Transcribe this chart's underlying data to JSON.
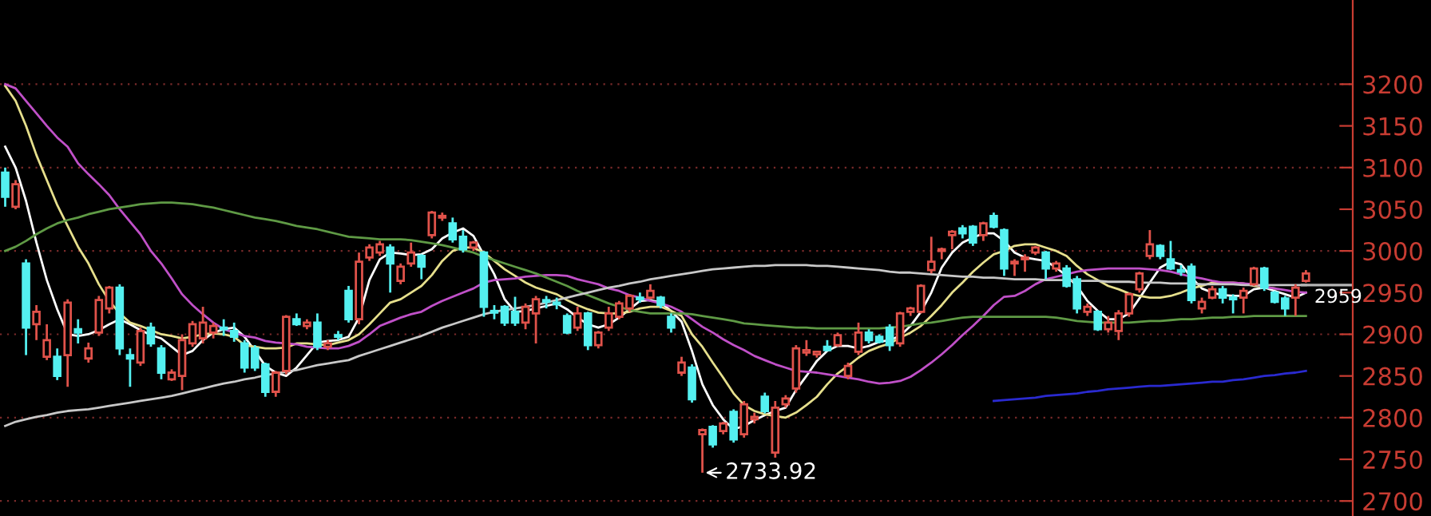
{
  "chart_data": {
    "type": "candlestick",
    "categories": [
      null,
      null,
      null,
      null,
      null,
      null,
      null,
      null,
      null,
      null,
      null,
      null,
      null,
      null,
      null,
      null,
      null,
      null,
      null,
      null,
      null,
      null,
      null,
      null,
      null,
      null,
      null,
      null,
      null,
      null,
      null,
      null,
      null,
      null,
      null,
      null,
      null,
      null,
      null,
      null,
      null,
      null,
      null,
      null,
      null,
      null,
      null,
      null,
      null,
      null,
      null,
      null,
      null,
      null,
      null,
      null,
      null,
      null,
      null,
      null,
      null,
      null,
      null,
      null,
      null,
      null,
      null,
      null,
      null,
      null,
      null,
      null,
      null,
      null,
      null,
      null,
      null,
      null,
      null,
      null,
      null,
      null,
      null,
      null,
      null,
      null,
      null,
      null,
      null,
      null,
      null,
      null,
      null,
      null,
      null,
      null,
      null,
      null,
      null,
      null,
      null,
      null,
      null,
      null,
      null,
      null,
      null,
      null,
      null,
      null,
      null,
      null,
      null,
      null,
      null,
      null,
      null,
      null,
      null,
      null,
      null,
      null,
      null,
      null,
      null,
      null
    ],
    "ohlc": [
      [
        3094,
        3100,
        3053,
        3065
      ],
      [
        3053,
        3085,
        3050,
        3080
      ],
      [
        2985,
        2990,
        2875,
        2908
      ],
      [
        2912,
        2935,
        2893,
        2927
      ],
      [
        2873,
        2912,
        2869,
        2893
      ],
      [
        2873,
        2883,
        2845,
        2850
      ],
      [
        2875,
        2942,
        2837,
        2938
      ],
      [
        2906,
        2918,
        2889,
        2902
      ],
      [
        2871,
        2890,
        2866,
        2883
      ],
      [
        2902,
        2946,
        2898,
        2941
      ],
      [
        2931,
        2958,
        2925,
        2956
      ],
      [
        2956,
        2960,
        2875,
        2883
      ],
      [
        2875,
        2883,
        2837,
        2871
      ],
      [
        2866,
        2908,
        2862,
        2904
      ],
      [
        2908,
        2914,
        2885,
        2889
      ],
      [
        2883,
        2887,
        2846,
        2854
      ],
      [
        2846,
        2858,
        2844,
        2854
      ],
      [
        2850,
        2900,
        2833,
        2893
      ],
      [
        2889,
        2916,
        2885,
        2912
      ],
      [
        2895,
        2933,
        2889,
        2914
      ],
      [
        2902,
        2914,
        2895,
        2910
      ],
      [
        2908,
        2918,
        2898,
        2906
      ],
      [
        2904,
        2914,
        2891,
        2897
      ],
      [
        2889,
        2893,
        2854,
        2860
      ],
      [
        2883,
        2887,
        2856,
        2860
      ],
      [
        2864,
        2866,
        2825,
        2831
      ],
      [
        2831,
        2856,
        2825,
        2854
      ],
      [
        2856,
        2923,
        2852,
        2921
      ],
      [
        2918,
        2925,
        2910,
        2912
      ],
      [
        2910,
        2918,
        2906,
        2914
      ],
      [
        2914,
        2925,
        2881,
        2885
      ],
      [
        2885,
        2893,
        2881,
        2889
      ],
      [
        2899,
        2904,
        2893,
        2897
      ],
      [
        2952,
        2958,
        2914,
        2918
      ],
      [
        2918,
        2998,
        2912,
        2987
      ],
      [
        2992,
        3008,
        2988,
        3004
      ],
      [
        2998,
        3012,
        2994,
        3008
      ],
      [
        3004,
        3008,
        2950,
        2985
      ],
      [
        2964,
        2985,
        2960,
        2981
      ],
      [
        2985,
        3010,
        2981,
        2998
      ],
      [
        2994,
        2996,
        2966,
        2981
      ],
      [
        3019,
        3048,
        3015,
        3046
      ],
      [
        3040,
        3046,
        3036,
        3042
      ],
      [
        3033,
        3040,
        3010,
        3014
      ],
      [
        3017,
        3025,
        2998,
        3002
      ],
      [
        3004,
        3012,
        3000,
        3010
      ],
      [
        2998,
        3000,
        2921,
        2933
      ],
      [
        2928,
        2935,
        2918,
        2926
      ],
      [
        2933,
        2935,
        2910,
        2914
      ],
      [
        2927,
        2945,
        2910,
        2914
      ],
      [
        2914,
        2937,
        2906,
        2933
      ],
      [
        2925,
        2946,
        2889,
        2942
      ],
      [
        2941,
        2946,
        2931,
        2939
      ],
      [
        2938,
        2944,
        2930,
        2936
      ],
      [
        2922,
        2925,
        2900,
        2902
      ],
      [
        2908,
        2933,
        2904,
        2925
      ],
      [
        2925,
        2927,
        2881,
        2887
      ],
      [
        2887,
        2904,
        2883,
        2902
      ],
      [
        2908,
        2933,
        2904,
        2925
      ],
      [
        2921,
        2940,
        2918,
        2937
      ],
      [
        2931,
        2948,
        2927,
        2946
      ],
      [
        2944,
        2950,
        2938,
        2942
      ],
      [
        2944,
        2960,
        2942,
        2952
      ],
      [
        2944,
        2946,
        2931,
        2935
      ],
      [
        2921,
        2925,
        2902,
        2908
      ],
      [
        2854,
        2873,
        2850,
        2866
      ],
      [
        2860,
        2864,
        2818,
        2822
      ],
      [
        2780,
        2787,
        2733.92,
        2785
      ],
      [
        2789,
        2791,
        2764,
        2768
      ],
      [
        2784,
        2795,
        2780,
        2793
      ],
      [
        2807,
        2810,
        2770,
        2774
      ],
      [
        2780,
        2820,
        2776,
        2816
      ],
      [
        2798,
        2806,
        2793,
        2801
      ],
      [
        2825,
        2830,
        2805,
        2808
      ],
      [
        2758,
        2820,
        2752,
        2812
      ],
      [
        2816,
        2827,
        2812,
        2823
      ],
      [
        2835,
        2887,
        2830,
        2883
      ],
      [
        2878,
        2893,
        2874,
        2881
      ],
      [
        2876,
        2880,
        2872,
        2879
      ],
      [
        2885,
        2893,
        2880,
        2881
      ],
      [
        2887,
        2902,
        2885,
        2899
      ],
      [
        2850,
        2866,
        2846,
        2862
      ],
      [
        2879,
        2914,
        2875,
        2902
      ],
      [
        2902,
        2906,
        2889,
        2893
      ],
      [
        2897,
        2900,
        2889,
        2891
      ],
      [
        2908,
        2912,
        2880,
        2887
      ],
      [
        2889,
        2927,
        2885,
        2925
      ],
      [
        2927,
        2933,
        2922,
        2931
      ],
      [
        2927,
        2960,
        2925,
        2958
      ],
      [
        2977,
        3017,
        2973,
        2987
      ],
      [
        3000,
        3004,
        2990,
        3002
      ],
      [
        3019,
        3025,
        3002,
        3023
      ],
      [
        3027,
        3031,
        3015,
        3021
      ],
      [
        3029,
        3031,
        3006,
        3010
      ],
      [
        3019,
        3035,
        3012,
        3033
      ],
      [
        3042,
        3046,
        3027,
        3029
      ],
      [
        3025,
        3027,
        2970,
        2979
      ],
      [
        2985,
        2990,
        2970,
        2987
      ],
      [
        2990,
        2996,
        2975,
        2992
      ],
      [
        2998,
        3006,
        2995,
        3004
      ],
      [
        2998,
        3000,
        2966,
        2979
      ],
      [
        2979,
        2988,
        2975,
        2985
      ],
      [
        2979,
        2983,
        2956,
        2958
      ],
      [
        2966,
        2970,
        2925,
        2931
      ],
      [
        2927,
        2937,
        2922,
        2933
      ],
      [
        2927,
        2929,
        2904,
        2906
      ],
      [
        2906,
        2922,
        2902,
        2914
      ],
      [
        2904,
        2929,
        2893,
        2925
      ],
      [
        2925,
        2950,
        2921,
        2948
      ],
      [
        2954,
        2975,
        2950,
        2973
      ],
      [
        2994,
        3025,
        2990,
        3008
      ],
      [
        3006,
        3008,
        2990,
        2994
      ],
      [
        2990,
        3012,
        2977,
        2979
      ],
      [
        2977,
        2983,
        2970,
        2975
      ],
      [
        2981,
        2985,
        2937,
        2941
      ],
      [
        2931,
        2944,
        2925,
        2939
      ],
      [
        2944,
        2958,
        2942,
        2954
      ],
      [
        2954,
        2958,
        2937,
        2944
      ],
      [
        2944,
        2948,
        2925,
        2942
      ],
      [
        2944,
        2956,
        2925,
        2952
      ],
      [
        2960,
        2981,
        2958,
        2979
      ],
      [
        2979,
        2981,
        2952,
        2956
      ],
      [
        2950,
        2952,
        2937,
        2939
      ],
      [
        2943,
        2946,
        2922,
        2931
      ],
      [
        2944,
        2960,
        2922,
        2956
      ],
      [
        2964,
        2977,
        2962,
        2973
      ]
    ],
    "series": [
      {
        "type": "line",
        "color": "#ffffff",
        "values": [
          3125,
          3100,
          3060,
          3010,
          2965,
          2930,
          2900,
          2898,
          2900,
          2905,
          2912,
          2918,
          2912,
          2905,
          2899,
          2895,
          2885,
          2875,
          2880,
          2893,
          2902,
          2906,
          2908,
          2897,
          2880,
          2862,
          2854,
          2850,
          2860,
          2875,
          2890,
          2892,
          2893,
          2897,
          2920,
          2965,
          2990,
          2998,
          2997,
          2995,
          2996,
          3002,
          3015,
          3022,
          3027,
          3018,
          2995,
          2972,
          2942,
          2927,
          2928,
          2931,
          2934,
          2937,
          2930,
          2920,
          2912,
          2908,
          2912,
          2920,
          2930,
          2940,
          2941,
          2938,
          2928,
          2915,
          2880,
          2840,
          2815,
          2798,
          2786,
          2790,
          2797,
          2803,
          2808,
          2812,
          2833,
          2850,
          2868,
          2880,
          2886,
          2886,
          2883,
          2886,
          2891,
          2893,
          2898,
          2910,
          2927,
          2950,
          2980,
          2998,
          3010,
          3016,
          3021,
          3021,
          3012,
          2998,
          2992,
          2990,
          2988,
          2980,
          2970,
          2958,
          2940,
          2928,
          2918,
          2918,
          2925,
          2943,
          2962,
          2980,
          2987,
          2984,
          2968,
          2955,
          2950,
          2947,
          2946,
          2946,
          2954,
          2956,
          2952,
          2948,
          2944,
          2950
        ]
      },
      {
        "type": "line",
        "color": "#e6df8c",
        "values": [
          3198,
          3180,
          3150,
          3115,
          3085,
          3055,
          3030,
          3005,
          2985,
          2960,
          2940,
          2925,
          2914,
          2910,
          2905,
          2900,
          2898,
          2895,
          2897,
          2900,
          2901,
          2900,
          2897,
          2887,
          2885,
          2883,
          2883,
          2884,
          2889,
          2889,
          2888,
          2887,
          2890,
          2893,
          2900,
          2912,
          2925,
          2938,
          2942,
          2950,
          2958,
          2971,
          2988,
          3000,
          3004,
          3004,
          2998,
          2988,
          2978,
          2970,
          2962,
          2956,
          2952,
          2948,
          2941,
          2935,
          2930,
          2926,
          2925,
          2925,
          2927,
          2931,
          2933,
          2933,
          2928,
          2922,
          2900,
          2885,
          2866,
          2848,
          2829,
          2815,
          2808,
          2804,
          2802,
          2800,
          2806,
          2815,
          2825,
          2840,
          2853,
          2862,
          2872,
          2880,
          2885,
          2889,
          2896,
          2902,
          2910,
          2922,
          2935,
          2950,
          2962,
          2975,
          2986,
          2996,
          3000,
          3006,
          3008,
          3008,
          3004,
          3000,
          2994,
          2982,
          2972,
          2965,
          2958,
          2954,
          2949,
          2946,
          2944,
          2944,
          2946,
          2950,
          2955,
          2958,
          2962,
          2962,
          2962,
          2961,
          2958,
          2957,
          2955,
          null,
          null,
          null
        ]
      },
      {
        "type": "line",
        "color": "#c050c8",
        "values": [
          3200,
          3195,
          3180,
          3165,
          3150,
          3136,
          3125,
          3105,
          3092,
          3080,
          3067,
          3050,
          3035,
          3020,
          3000,
          2985,
          2967,
          2948,
          2935,
          2924,
          2914,
          2906,
          2902,
          2898,
          2896,
          2892,
          2890,
          2889,
          2888,
          2885,
          2884,
          2883,
          2883,
          2886,
          2891,
          2900,
          2910,
          2915,
          2920,
          2924,
          2927,
          2934,
          2940,
          2945,
          2950,
          2955,
          2962,
          2965,
          2966,
          2967,
          2969,
          2970,
          2971,
          2971,
          2970,
          2966,
          2963,
          2960,
          2955,
          2952,
          2947,
          2944,
          2940,
          2937,
          2933,
          2927,
          2918,
          2909,
          2902,
          2894,
          2887,
          2881,
          2874,
          2869,
          2864,
          2860,
          2856,
          2855,
          2854,
          2852,
          2850,
          2848,
          2846,
          2843,
          2841,
          2842,
          2844,
          2849,
          2857,
          2866,
          2876,
          2887,
          2899,
          2910,
          2922,
          2935,
          2945,
          2946,
          2952,
          2960,
          2966,
          2969,
          2972,
          2975,
          2977,
          2978,
          2979,
          2979,
          2979,
          2979,
          2978,
          2977,
          2975,
          2972,
          2969,
          2967,
          2964,
          2962,
          2962,
          2961,
          2960,
          2957,
          2955,
          2953,
          2951,
          2950
        ]
      },
      {
        "type": "line",
        "color": "#5f9a45",
        "values": [
          3000,
          3005,
          3012,
          3020,
          3027,
          3033,
          3037,
          3040,
          3044,
          3047,
          3050,
          3052,
          3054,
          3056,
          3057,
          3058,
          3058,
          3057,
          3056,
          3054,
          3052,
          3049,
          3046,
          3043,
          3040,
          3038,
          3036,
          3033,
          3030,
          3028,
          3026,
          3023,
          3020,
          3017,
          3016,
          3015,
          3014,
          3014,
          3014,
          3013,
          3011,
          3009,
          3007,
          3004,
          3001,
          2998,
          2993,
          2989,
          2985,
          2981,
          2977,
          2973,
          2968,
          2963,
          2958,
          2952,
          2947,
          2942,
          2937,
          2933,
          2929,
          2927,
          2925,
          2925,
          2925,
          2925,
          2924,
          2922,
          2920,
          2918,
          2916,
          2913,
          2912,
          2911,
          2910,
          2909,
          2908,
          2908,
          2907,
          2907,
          2907,
          2907,
          2907,
          2907,
          2907,
          2908,
          2909,
          2911,
          2913,
          2914,
          2916,
          2918,
          2920,
          2921,
          2921,
          2921,
          2921,
          2921,
          2921,
          2921,
          2921,
          2920,
          2918,
          2916,
          2915,
          2914,
          2914,
          2914,
          2914,
          2915,
          2916,
          2916,
          2917,
          2918,
          2918,
          2919,
          2920,
          2920,
          2921,
          2921,
          2922,
          2922,
          2922,
          2922,
          2922,
          2922
        ]
      },
      {
        "type": "line",
        "color": "#c8c8c8",
        "values": [
          2790,
          2795,
          2798,
          2801,
          2803,
          2806,
          2808,
          2809,
          2810,
          2812,
          2814,
          2816,
          2818,
          2820,
          2822,
          2824,
          2826,
          2829,
          2832,
          2835,
          2838,
          2841,
          2843,
          2846,
          2848,
          2851,
          2853,
          2855,
          2857,
          2860,
          2863,
          2865,
          2867,
          2869,
          2874,
          2878,
          2882,
          2886,
          2890,
          2894,
          2898,
          2903,
          2908,
          2912,
          2916,
          2920,
          2924,
          2927,
          2929,
          2931,
          2933,
          2935,
          2938,
          2941,
          2944,
          2947,
          2950,
          2953,
          2956,
          2958,
          2961,
          2963,
          2966,
          2968,
          2970,
          2972,
          2974,
          2976,
          2978,
          2979,
          2980,
          2981,
          2982,
          2982,
          2983,
          2983,
          2983,
          2983,
          2982,
          2982,
          2981,
          2980,
          2979,
          2978,
          2977,
          2975,
          2974,
          2974,
          2973,
          2972,
          2971,
          2970,
          2969,
          2969,
          2968,
          2968,
          2967,
          2966,
          2966,
          2966,
          2965,
          2965,
          2965,
          2964,
          2964,
          2964,
          2963,
          2963,
          2963,
          2962,
          2962,
          2962,
          2961,
          2961,
          2961,
          2960,
          2960,
          2960,
          2960,
          2959,
          2959,
          2959,
          2959,
          2959,
          2959,
          2959
        ]
      },
      {
        "type": "line",
        "color": "#2a2ad0",
        "values": [
          null,
          null,
          null,
          null,
          null,
          null,
          null,
          null,
          null,
          null,
          null,
          null,
          null,
          null,
          null,
          null,
          null,
          null,
          null,
          null,
          null,
          null,
          null,
          null,
          null,
          null,
          null,
          null,
          null,
          null,
          null,
          null,
          null,
          null,
          null,
          null,
          null,
          null,
          null,
          null,
          null,
          null,
          null,
          null,
          null,
          null,
          null,
          null,
          null,
          null,
          null,
          null,
          null,
          null,
          null,
          null,
          null,
          null,
          null,
          null,
          null,
          null,
          null,
          null,
          null,
          null,
          null,
          null,
          null,
          null,
          null,
          null,
          null,
          null,
          null,
          null,
          null,
          null,
          null,
          null,
          null,
          null,
          null,
          null,
          null,
          null,
          null,
          null,
          null,
          null,
          null,
          null,
          null,
          null,
          null,
          2820,
          2821,
          2822,
          2823,
          2824,
          2826,
          2827,
          2828,
          2829,
          2831,
          2832,
          2834,
          2835,
          2836,
          2837,
          2838,
          2838,
          2839,
          2840,
          2841,
          2842,
          2843,
          2843,
          2845,
          2846,
          2848,
          2850,
          2851,
          2853,
          2854,
          2856
        ]
      }
    ],
    "ylim": [
      2682,
      3301
    ],
    "yticks": [
      2700,
      2750,
      2800,
      2850,
      2900,
      2950,
      3000,
      3050,
      3100,
      3150,
      3200
    ],
    "grid": "y",
    "tick_labels": "y",
    "annotations": [
      "2733.92"
    ],
    "ref_lines": [
      {
        "axis": "y",
        "value": 2959,
        "label": "2959",
        "color": "#b4b4b4"
      }
    ]
  }
}
